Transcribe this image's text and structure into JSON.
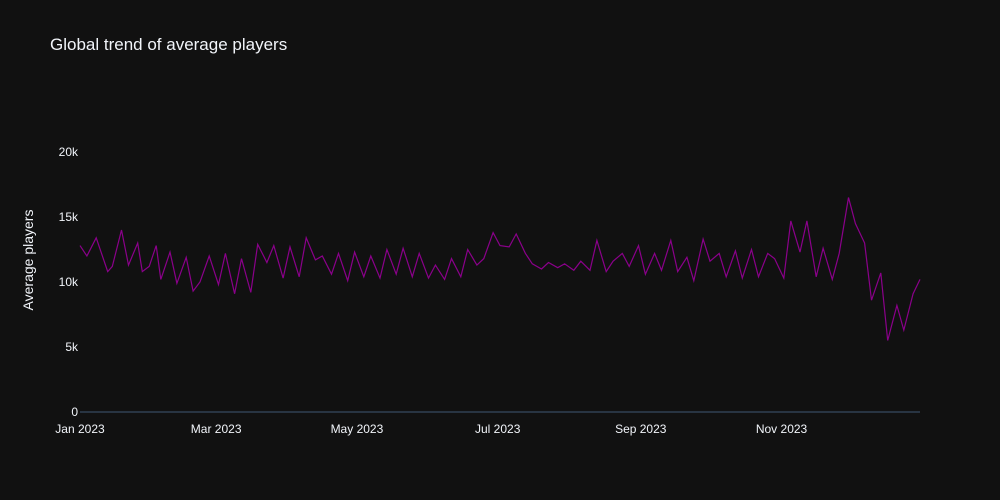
{
  "chart_data": {
    "type": "line",
    "title": "Global trend of average players",
    "xlabel": "",
    "ylabel": "Average players",
    "x_start": "2023-01-01",
    "x_end": "2023-12-31",
    "xlim": [
      "2023-01-01",
      "2023-12-31"
    ],
    "ylim": [
      0,
      24000
    ],
    "x_ticks": [
      {
        "date": "2023-01-01",
        "label": "Jan 2023"
      },
      {
        "date": "2023-03-01",
        "label": "Mar 2023"
      },
      {
        "date": "2023-05-01",
        "label": "May 2023"
      },
      {
        "date": "2023-07-01",
        "label": "Jul 2023"
      },
      {
        "date": "2023-09-01",
        "label": "Sep 2023"
      },
      {
        "date": "2023-11-01",
        "label": "Nov 2023"
      }
    ],
    "y_ticks": [
      {
        "value": 0,
        "label": "0"
      },
      {
        "value": 5000,
        "label": "5k"
      },
      {
        "value": 10000,
        "label": "10k"
      },
      {
        "value": 15000,
        "label": "15k"
      },
      {
        "value": 20000,
        "label": "20k"
      }
    ],
    "grid": false,
    "line_color": "#8b008b",
    "series": [
      {
        "name": "",
        "x": [
          "2023-01-01",
          "2023-01-04",
          "2023-01-08",
          "2023-01-13",
          "2023-01-15",
          "2023-01-19",
          "2023-01-22",
          "2023-01-26",
          "2023-01-28",
          "2023-01-31",
          "2023-02-03",
          "2023-02-05",
          "2023-02-09",
          "2023-02-12",
          "2023-02-16",
          "2023-02-19",
          "2023-02-22",
          "2023-02-26",
          "2023-03-02",
          "2023-03-05",
          "2023-03-09",
          "2023-03-12",
          "2023-03-16",
          "2023-03-19",
          "2023-03-23",
          "2023-03-26",
          "2023-03-30",
          "2023-04-02",
          "2023-04-06",
          "2023-04-09",
          "2023-04-13",
          "2023-04-16",
          "2023-04-20",
          "2023-04-23",
          "2023-04-27",
          "2023-04-30",
          "2023-05-04",
          "2023-05-07",
          "2023-05-11",
          "2023-05-14",
          "2023-05-18",
          "2023-05-21",
          "2023-05-25",
          "2023-05-28",
          "2023-06-01",
          "2023-06-04",
          "2023-06-08",
          "2023-06-11",
          "2023-06-15",
          "2023-06-18",
          "2023-06-22",
          "2023-06-25",
          "2023-06-29",
          "2023-07-02",
          "2023-07-06",
          "2023-07-09",
          "2023-07-13",
          "2023-07-16",
          "2023-07-20",
          "2023-07-23",
          "2023-07-27",
          "2023-07-30",
          "2023-08-03",
          "2023-08-06",
          "2023-08-10",
          "2023-08-13",
          "2023-08-17",
          "2023-08-20",
          "2023-08-24",
          "2023-08-27",
          "2023-08-31",
          "2023-09-03",
          "2023-09-07",
          "2023-09-10",
          "2023-09-14",
          "2023-09-17",
          "2023-09-21",
          "2023-09-24",
          "2023-09-28",
          "2023-10-01",
          "2023-10-05",
          "2023-10-08",
          "2023-10-12",
          "2023-10-15",
          "2023-10-19",
          "2023-10-22",
          "2023-10-26",
          "2023-10-29",
          "2023-11-02",
          "2023-11-05",
          "2023-11-09",
          "2023-11-12",
          "2023-11-16",
          "2023-11-19",
          "2023-11-23",
          "2023-11-26",
          "2023-11-30",
          "2023-12-03",
          "2023-12-07",
          "2023-12-10",
          "2023-12-14",
          "2023-12-17",
          "2023-12-21",
          "2023-12-24",
          "2023-12-28",
          "2023-12-31"
        ],
        "values": [
          12800,
          12000,
          13400,
          10800,
          11200,
          14000,
          11300,
          13000,
          10800,
          11200,
          12800,
          10200,
          12300,
          9900,
          11900,
          9300,
          10000,
          12000,
          9800,
          12200,
          9100,
          11800,
          9200,
          12900,
          11500,
          12800,
          10300,
          12700,
          10400,
          13400,
          11700,
          12000,
          10600,
          12200,
          10100,
          12300,
          10400,
          12000,
          10300,
          12500,
          10600,
          12600,
          10400,
          12200,
          10300,
          11300,
          10200,
          11800,
          10400,
          12500,
          11300,
          11800,
          13800,
          12800,
          12700,
          13700,
          12200,
          11400,
          11000,
          11500,
          11100,
          11400,
          10900,
          11600,
          10900,
          13200,
          10800,
          11600,
          12200,
          11200,
          12800,
          10600,
          12200,
          10900,
          13200,
          10800,
          11900,
          10100,
          13300,
          11600,
          12200,
          10400,
          12400,
          10300,
          12500,
          10400,
          12200,
          11800,
          10300,
          14700,
          12300,
          14700,
          10400,
          12600,
          10200,
          12200,
          16500,
          14500,
          13000,
          8600,
          10700,
          5500,
          8200,
          6300,
          9100,
          10200
        ]
      }
    ]
  }
}
